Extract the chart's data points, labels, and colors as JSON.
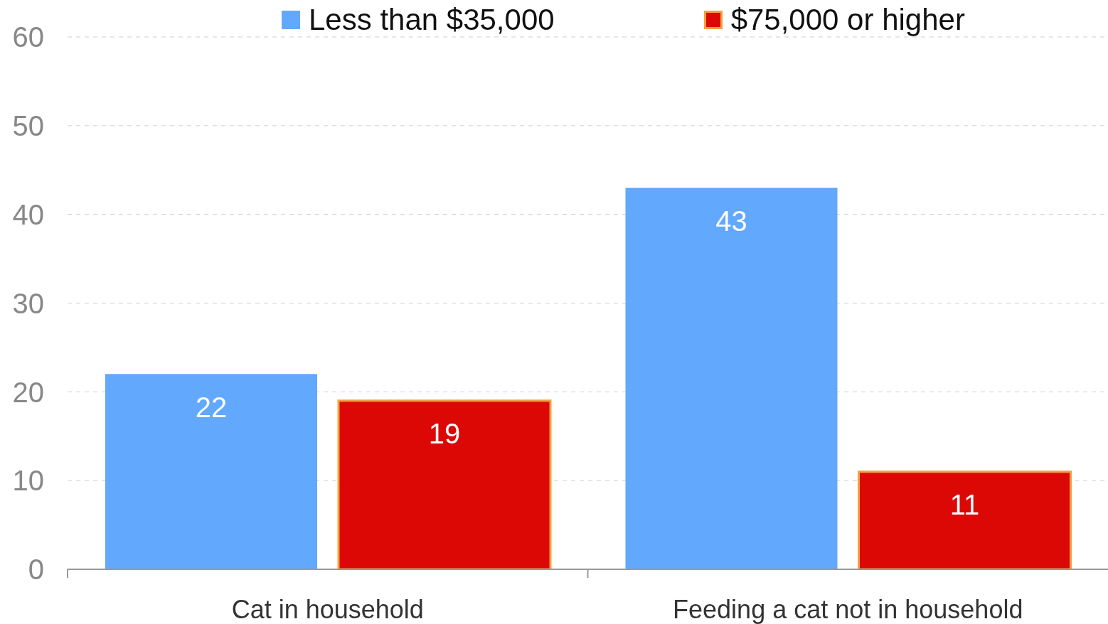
{
  "chart_data": {
    "type": "bar",
    "categories": [
      "Cat in household",
      "Feeding a cat not in household"
    ],
    "series": [
      {
        "name": "Less than $35,000",
        "color": "#62a8fd",
        "values": [
          22,
          43
        ]
      },
      {
        "name": "$75,000 or higher",
        "color": "#dc0806",
        "values": [
          19,
          11
        ]
      }
    ],
    "ylim": [
      0,
      60
    ],
    "yticks": [
      0,
      10,
      20,
      30,
      40,
      50,
      60
    ],
    "grid": "y",
    "legend": "top",
    "data_labels": true
  }
}
